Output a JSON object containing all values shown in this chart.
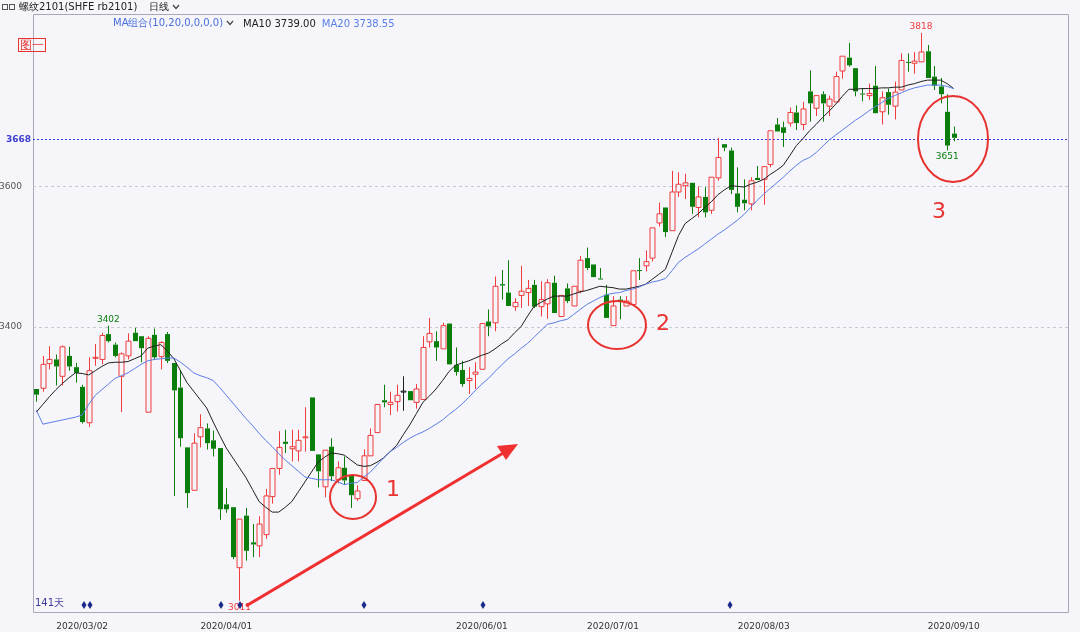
{
  "chart_data": {
    "type": "candlestick",
    "title": "螺纹2101(SHFE rb2101)",
    "subtitle": "日线",
    "legend_title": "MA组合(10,20,0,0,0,0)",
    "legend": "top left",
    "grid": "y",
    "categories": [
      null,
      null,
      null,
      null,
      null,
      null,
      null,
      "2020/03/02",
      null,
      null,
      null,
      null,
      null,
      null,
      null,
      null,
      null,
      null,
      null,
      null,
      null,
      null,
      null,
      null,
      null,
      null,
      null,
      null,
      null,
      "2020/04/01",
      null,
      null,
      null,
      null,
      null,
      null,
      null,
      null,
      null,
      null,
      null,
      null,
      null,
      null,
      null,
      null,
      null,
      null,
      null,
      null,
      null,
      null,
      null,
      null,
      null,
      null,
      null,
      null,
      null,
      null,
      null,
      null,
      null,
      null,
      null,
      null,
      null,
      null,
      "2020/06/01",
      null,
      null,
      null,
      null,
      null,
      null,
      null,
      null,
      null,
      null,
      null,
      null,
      null,
      null,
      null,
      null,
      null,
      null,
      null,
      "2020/07/01",
      null,
      null,
      null,
      null,
      null,
      null,
      null,
      null,
      null,
      null,
      null,
      null,
      null,
      null,
      null,
      null,
      null,
      null,
      null,
      null,
      null,
      null,
      "2020/08/03",
      null,
      null,
      null,
      null,
      null,
      null,
      null,
      null,
      null,
      null,
      null,
      null,
      null,
      null,
      null,
      null,
      null,
      null,
      null,
      null,
      null,
      null,
      null,
      null,
      null,
      null,
      null,
      null,
      "2020/09/10"
    ],
    "colors": [
      "#0a7d0a",
      "#f03c3c",
      "#f03c3c",
      "#0a7d0a",
      "#f03c3c",
      "#0a7d0a",
      "#0a7d0a",
      "#0a7d0a",
      "#f03c3c",
      "#f03c3c",
      "#f03c3c",
      "#0a7d0a",
      "#0a7d0a",
      "#f03c3c",
      "#f03c3c",
      "#0a7d0a",
      "#0a7d0a",
      "#f03c3c",
      "#0a7d0a",
      "#f03c3c",
      "#0a7d0a",
      "#0a7d0a",
      "#0a7d0a",
      "#0a7d0a",
      "#f03c3c",
      "#f03c3c",
      "#0a7d0a",
      "#0a7d0a",
      "#0a7d0a",
      "#0a7d0a",
      "#0a7d0a",
      "#f03c3c",
      "#0a7d0a",
      "#0a7d0a",
      "#f03c3c",
      "#f03c3c",
      "#f03c3c",
      "#f03c3c",
      "#0a7d0a",
      "#f03c3c",
      "#f03c3c",
      "#f03c3c",
      "#0a7d0a",
      "#0a7d0a",
      "#f03c3c",
      "#0a7d0a",
      "#f03c3c",
      "#0a7d0a",
      "#0a7d0a",
      "#f03c3c",
      "#f03c3c",
      "#f03c3c",
      "#f03c3c",
      "#0a7d0a",
      "#f03c3c",
      "#f03c3c",
      "#202020",
      "#0a7d0a",
      "#f03c3c",
      "#f03c3c",
      "#f03c3c",
      "#0a7d0a",
      "#f03c3c",
      "#0a7d0a",
      "#0a7d0a",
      "#0a7d0a",
      "#f03c3c",
      "#f03c3c",
      "#f03c3c",
      "#0a7d0a",
      "#f03c3c",
      "#0a7d0a",
      "#0a7d0a",
      "#f03c3c",
      "#f03c3c",
      "#f03c3c",
      "#0a7d0a",
      "#f03c3c",
      "#f03c3c",
      "#0a7d0a",
      "#f03c3c",
      "#0a7d0a",
      "#f03c3c",
      "#f03c3c",
      "#0a7d0a",
      "#0a7d0a",
      "#0a7d0a",
      "#0a7d0a",
      "#f03c3c",
      "#0a7d0a",
      "#f03c3c",
      "#f03c3c",
      "#0a7d0a",
      "#f03c3c",
      "#f03c3c",
      "#f03c3c",
      "#0a7d0a",
      "#f03c3c",
      "#f03c3c",
      "#f03c3c",
      "#0a7d0a",
      "#f03c3c",
      "#0a7d0a",
      "#f03c3c",
      "#f03c3c",
      "#0a7d0a",
      "#0a7d0a",
      "#0a7d0a",
      "#0a7d0a",
      "#f03c3c",
      "#0a7d0a",
      "#f03c3c",
      "#f03c3c",
      "#0a7d0a",
      "#0a7d0a",
      "#f03c3c",
      "#0a7d0a",
      "#f03c3c",
      "#0a7d0a",
      "#f03c3c",
      "#0a7d0a",
      "#f03c3c",
      "#f03c3c",
      "#f03c3c",
      "#0a7d0a",
      "#0a7d0a",
      "#0a7d0a",
      "#f03c3c",
      "#0a7d0a",
      "#f03c3c",
      "#0a7d0a",
      "#f03c3c",
      "#f03c3c",
      "#0a7d0a",
      "#f03c3c",
      "#f03c3c",
      "#0a7d0a",
      "#0a7d0a",
      "#0a7d0a",
      "#0a7d0a",
      "#0a7d0a"
    ],
    "ohlc": [
      [
        3312,
        3312,
        3294,
        3304
      ],
      [
        3313,
        3359,
        3308,
        3347
      ],
      [
        3348,
        3373,
        3340,
        3354
      ],
      [
        3354,
        3361,
        3317,
        3344
      ],
      [
        3330,
        3374,
        3317,
        3372
      ],
      [
        3359,
        3372,
        3338,
        3344
      ],
      [
        3343,
        3349,
        3321,
        3335
      ],
      [
        3315,
        3318,
        3263,
        3265
      ],
      [
        3264,
        3357,
        3258,
        3338
      ],
      [
        3356,
        3376,
        3345,
        3357
      ],
      [
        3354,
        3392,
        3347,
        3388
      ],
      [
        3390,
        3402,
        3378,
        3380
      ],
      [
        3375,
        3378,
        3357,
        3359
      ],
      [
        3330,
        3364,
        3279,
        3362
      ],
      [
        3359,
        3391,
        3354,
        3380
      ],
      [
        3392,
        3399,
        3380,
        3380
      ],
      [
        3387,
        3387,
        3350,
        3370
      ],
      [
        3279,
        3387,
        3279,
        3384
      ],
      [
        3389,
        3398,
        3354,
        3357
      ],
      [
        3358,
        3380,
        3340,
        3378
      ],
      [
        3390,
        3393,
        3349,
        3352
      ],
      [
        3349,
        3349,
        3160,
        3310
      ],
      [
        3314,
        3339,
        3230,
        3242
      ],
      [
        3229,
        3229,
        3143,
        3164
      ],
      [
        3168,
        3249,
        3168,
        3235
      ],
      [
        3244,
        3276,
        3229,
        3257
      ],
      [
        3256,
        3263,
        3226,
        3235
      ],
      [
        3239,
        3253,
        3216,
        3227
      ],
      [
        3228,
        3228,
        3126,
        3141
      ],
      [
        3148,
        3171,
        3136,
        3141
      ],
      [
        3144,
        3144,
        3070,
        3073
      ],
      [
        3058,
        3127,
        3011,
        3127
      ],
      [
        3132,
        3143,
        3068,
        3082
      ],
      [
        3094,
        3120,
        3073,
        3091
      ],
      [
        3089,
        3131,
        3073,
        3120
      ],
      [
        3105,
        3170,
        3099,
        3160
      ],
      [
        3159,
        3199,
        3149,
        3199
      ],
      [
        3199,
        3252,
        3190,
        3229
      ],
      [
        3237,
        3254,
        3221,
        3234
      ],
      [
        3227,
        3254,
        3209,
        3230
      ],
      [
        3224,
        3254,
        3209,
        3239
      ],
      [
        3243,
        3286,
        3223,
        3244
      ],
      [
        3300,
        3300,
        3224,
        3224
      ],
      [
        3219,
        3219,
        3172,
        3195
      ],
      [
        3173,
        3225,
        3158,
        3225
      ],
      [
        3230,
        3242,
        3181,
        3188
      ],
      [
        3183,
        3209,
        3178,
        3200
      ],
      [
        3200,
        3216,
        3176,
        3182
      ],
      [
        3189,
        3190,
        3143,
        3161
      ],
      [
        3156,
        3175,
        3153,
        3167
      ],
      [
        3182,
        3226,
        3182,
        3217
      ],
      [
        3217,
        3256,
        3217,
        3246
      ],
      [
        3250,
        3290,
        3250,
        3290
      ],
      [
        3296,
        3318,
        3286,
        3293
      ],
      [
        3290,
        3308,
        3275,
        3293
      ],
      [
        3294,
        3318,
        3280,
        3303
      ],
      [
        3309,
        3330,
        3281,
        3309
      ],
      [
        3309,
        3309,
        3296,
        3296
      ],
      [
        3293,
        3319,
        3284,
        3312
      ],
      [
        3297,
        3387,
        3297,
        3371
      ],
      [
        3379,
        3413,
        3371,
        3391
      ],
      [
        3380,
        3394,
        3352,
        3371
      ],
      [
        3369,
        3406,
        3369,
        3402
      ],
      [
        3405,
        3405,
        3347,
        3347
      ],
      [
        3346,
        3371,
        3331,
        3336
      ],
      [
        3339,
        3352,
        3315,
        3319
      ],
      [
        3324,
        3343,
        3305,
        3327
      ],
      [
        3333,
        3350,
        3312,
        3336
      ],
      [
        3340,
        3405,
        3340,
        3405
      ],
      [
        3408,
        3425,
        3387,
        3401
      ],
      [
        3406,
        3472,
        3394,
        3458
      ],
      [
        3461,
        3481,
        3439,
        3459
      ],
      [
        3449,
        3495,
        3430,
        3430
      ],
      [
        3429,
        3441,
        3423,
        3435
      ],
      [
        3445,
        3487,
        3427,
        3451
      ],
      [
        3449,
        3467,
        3430,
        3455
      ],
      [
        3460,
        3467,
        3427,
        3429
      ],
      [
        3429,
        3465,
        3415,
        3439
      ],
      [
        3433,
        3468,
        3412,
        3463
      ],
      [
        3463,
        3473,
        3420,
        3420
      ],
      [
        3415,
        3445,
        3415,
        3445
      ],
      [
        3455,
        3462,
        3434,
        3437
      ],
      [
        3430,
        3458,
        3430,
        3458
      ],
      [
        3451,
        3501,
        3448,
        3495
      ],
      [
        3498,
        3513,
        3481,
        3484
      ],
      [
        3489,
        3489,
        3471,
        3471
      ],
      [
        3469,
        3484,
        3468,
        3468
      ],
      [
        3446,
        3460,
        3413,
        3413
      ],
      [
        3402,
        3444,
        3402,
        3430
      ],
      [
        3439,
        3444,
        3411,
        3437
      ],
      [
        3430,
        3444,
        3430,
        3437
      ],
      [
        3432,
        3480,
        3432,
        3480
      ],
      [
        3481,
        3498,
        3467,
        3480
      ],
      [
        3487,
        3509,
        3479,
        3493
      ],
      [
        3498,
        3541,
        3493,
        3541
      ],
      [
        3548,
        3577,
        3543,
        3561
      ],
      [
        3570,
        3570,
        3528,
        3535
      ],
      [
        3537,
        3622,
        3537,
        3592
      ],
      [
        3592,
        3620,
        3585,
        3603
      ],
      [
        3601,
        3618,
        3582,
        3605
      ],
      [
        3605,
        3605,
        3561,
        3571
      ],
      [
        3570,
        3600,
        3556,
        3585
      ],
      [
        3585,
        3599,
        3556,
        3563
      ],
      [
        3566,
        3613,
        3561,
        3613
      ],
      [
        3612,
        3669,
        3608,
        3641
      ],
      [
        3660,
        3660,
        3650,
        3655
      ],
      [
        3651,
        3655,
        3589,
        3595
      ],
      [
        3590,
        3627,
        3563,
        3571
      ],
      [
        3581,
        3610,
        3566,
        3576
      ],
      [
        3575,
        3613,
        3566,
        3608
      ],
      [
        3612,
        3629,
        3609,
        3609
      ],
      [
        3610,
        3628,
        3574,
        3628
      ],
      [
        3631,
        3679,
        3627,
        3679
      ],
      [
        3688,
        3697,
        3678,
        3678
      ],
      [
        3684,
        3692,
        3656,
        3676
      ],
      [
        3690,
        3712,
        3685,
        3705
      ],
      [
        3705,
        3715,
        3680,
        3690
      ],
      [
        3688,
        3720,
        3680,
        3710
      ],
      [
        3735,
        3765,
        3692,
        3718
      ],
      [
        3711,
        3729,
        3700,
        3729
      ],
      [
        3731,
        3735,
        3692,
        3718
      ],
      [
        3714,
        3729,
        3700,
        3724
      ],
      [
        3720,
        3763,
        3720,
        3756
      ],
      [
        3764,
        3785,
        3753,
        3785
      ],
      [
        3783,
        3804,
        3770,
        3772
      ],
      [
        3768,
        3768,
        3728,
        3735
      ],
      [
        3732,
        3739,
        3721,
        3731
      ],
      [
        3729,
        3746,
        3723,
        3732
      ],
      [
        3743,
        3771,
        3704,
        3704
      ],
      [
        3706,
        3735,
        3688,
        3726
      ],
      [
        3734,
        3739,
        3702,
        3716
      ],
      [
        3714,
        3749,
        3695,
        3734
      ],
      [
        3737,
        3789,
        3737,
        3779
      ],
      [
        3777,
        3789,
        3763,
        3776
      ],
      [
        3775,
        3791,
        3760,
        3778
      ],
      [
        3777,
        3818,
        3777,
        3791
      ],
      [
        3792,
        3801,
        3754,
        3754
      ],
      [
        3756,
        3771,
        3737,
        3743
      ],
      [
        3742,
        3754,
        3718,
        3731
      ],
      [
        3706,
        3731,
        3651,
        3658
      ],
      [
        3675,
        3685,
        3664,
        3669
      ]
    ],
    "series": [
      {
        "type": "line",
        "name": "MA10 3739.00",
        "color": "#202020",
        "values": [
          3279,
          3290,
          3301,
          3311,
          3320,
          3328,
          3335,
          3334,
          3332,
          3338,
          3344,
          3349,
          3350,
          3350,
          3351,
          3355,
          3359,
          3370,
          3373,
          3375,
          3366,
          3355,
          3338,
          3321,
          3309,
          3297,
          3285,
          3265,
          3246,
          3228,
          3214,
          3200,
          3186,
          3169,
          3152,
          3144,
          3137,
          3137,
          3144,
          3152,
          3166,
          3180,
          3194,
          3208,
          3215,
          3221,
          3220,
          3218,
          3211,
          3204,
          3202,
          3203,
          3208,
          3214,
          3223,
          3232,
          3247,
          3261,
          3277,
          3293,
          3302,
          3312,
          3324,
          3337,
          3346,
          3349,
          3352,
          3356,
          3360,
          3363,
          3369,
          3376,
          3382,
          3392,
          3401,
          3416,
          3430,
          3435,
          3440,
          3444,
          3444,
          3444,
          3447,
          3450,
          3452,
          3455,
          3458,
          3457,
          3456,
          3454,
          3454,
          3456,
          3458,
          3461,
          3468,
          3475,
          3482,
          3506,
          3530,
          3547,
          3554,
          3561,
          3570,
          3578,
          3588,
          3595,
          3601,
          3600,
          3599,
          3603,
          3606,
          3610,
          3617,
          3623,
          3630,
          3644,
          3658,
          3668,
          3679,
          3688,
          3698,
          3707,
          3717,
          3728,
          3738,
          3738,
          3739,
          3739,
          3739,
          3740,
          3740,
          3741,
          3741,
          3744,
          3746,
          3749,
          3751,
          3751,
          3751,
          3746,
          3739
        ]
      },
      {
        "type": "line",
        "name": "MA20 3738.55",
        "color": "#5a7ee6",
        "values": [
          3282,
          3262,
          3264,
          3266,
          3268,
          3270,
          3272,
          3275,
          3290,
          3303,
          3311,
          3319,
          3327,
          3331,
          3335,
          3341,
          3347,
          3352,
          3354,
          3355,
          3356,
          3356,
          3350,
          3343,
          3335,
          3331,
          3328,
          3324,
          3314,
          3303,
          3292,
          3281,
          3270,
          3260,
          3249,
          3239,
          3230,
          3220,
          3211,
          3203,
          3195,
          3187,
          3185,
          3183,
          3183,
          3183,
          3180,
          3176,
          3178,
          3179,
          3187,
          3194,
          3204,
          3214,
          3223,
          3229,
          3236,
          3242,
          3247,
          3251,
          3256,
          3262,
          3268,
          3276,
          3283,
          3291,
          3300,
          3310,
          3319,
          3327,
          3337,
          3346,
          3355,
          3362,
          3370,
          3377,
          3386,
          3395,
          3404,
          3406,
          3409,
          3411,
          3418,
          3425,
          3432,
          3437,
          3442,
          3446,
          3448,
          3449,
          3452,
          3454,
          3457,
          3461,
          3464,
          3466,
          3469,
          3480,
          3492,
          3499,
          3505,
          3511,
          3518,
          3525,
          3532,
          3538,
          3545,
          3552,
          3560,
          3570,
          3580,
          3589,
          3597,
          3605,
          3613,
          3622,
          3630,
          3637,
          3641,
          3648,
          3657,
          3666,
          3673,
          3680,
          3687,
          3694,
          3700,
          3707,
          3713,
          3719,
          3725,
          3729,
          3733,
          3737,
          3740,
          3742,
          3744,
          3744,
          3744,
          3742,
          3739
        ]
      }
    ],
    "ylim": [
      2995,
      3845
    ],
    "yticks": [
      3400,
      3600
    ],
    "ref_lines": [
      {
        "axis": "y",
        "value": 3668,
        "label": "3668",
        "color": "#3c3cd0",
        "line_style": "dotted"
      }
    ],
    "annotations": [
      "图一",
      "141天",
      {
        "text": "3402",
        "y": 3402
      },
      {
        "text": "3818",
        "y": 3818
      },
      {
        "text": "3651",
        "y": 3651
      },
      {
        "text": "3011",
        "y": 3011
      },
      "1",
      "2",
      "3"
    ]
  }
}
